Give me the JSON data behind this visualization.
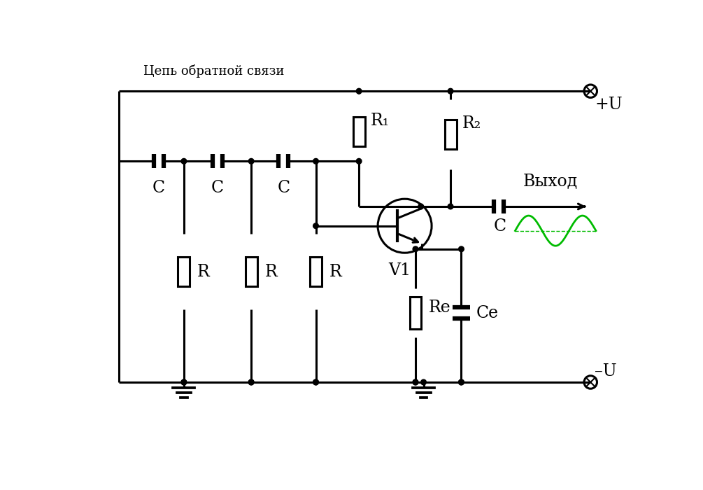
{
  "bg_color": "#ffffff",
  "line_color": "#000000",
  "green_color": "#00bb00",
  "title_text": "Цепь обратной связи",
  "vyhod_text": "Выход",
  "plus_u_text": "+U",
  "minus_u_text": "–U",
  "v1_text": "V1",
  "r1_text": "R₁",
  "r2_text": "R₂",
  "re_text": "Re",
  "ce_text": "Ce",
  "r_text": "R",
  "c_text": "C",
  "c_out_text": "C",
  "figsize": [
    10.05,
    7.0
  ],
  "dpi": 100
}
